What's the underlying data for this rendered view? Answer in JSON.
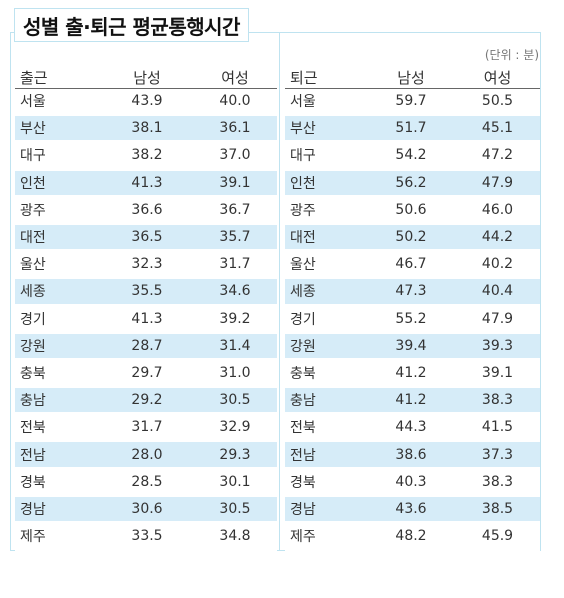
{
  "title": "성별 출·퇴근 평균통행시간",
  "unit": "(단위 : 분)",
  "commute_to_work": {
    "headers": [
      "출근",
      "남성",
      "여성"
    ],
    "rows": [
      [
        "서울",
        "43.9",
        "40.0"
      ],
      [
        "부산",
        "38.1",
        "36.1"
      ],
      [
        "대구",
        "38.2",
        "37.0"
      ],
      [
        "인천",
        "41.3",
        "39.1"
      ],
      [
        "광주",
        "36.6",
        "36.7"
      ],
      [
        "대전",
        "36.5",
        "35.7"
      ],
      [
        "울산",
        "32.3",
        "31.7"
      ],
      [
        "세종",
        "35.5",
        "34.6"
      ],
      [
        "경기",
        "41.3",
        "39.2"
      ],
      [
        "강원",
        "28.7",
        "31.4"
      ],
      [
        "충북",
        "29.7",
        "31.0"
      ],
      [
        "충남",
        "29.2",
        "30.5"
      ],
      [
        "전북",
        "31.7",
        "32.9"
      ],
      [
        "전남",
        "28.0",
        "29.3"
      ],
      [
        "경북",
        "28.5",
        "30.1"
      ],
      [
        "경남",
        "30.6",
        "30.5"
      ],
      [
        "제주",
        "33.5",
        "34.8"
      ]
    ]
  },
  "commute_from_work": {
    "headers": [
      "퇴근",
      "남성",
      "여성"
    ],
    "rows": [
      [
        "서울",
        "59.7",
        "50.5"
      ],
      [
        "부산",
        "51.7",
        "45.1"
      ],
      [
        "대구",
        "54.2",
        "47.2"
      ],
      [
        "인천",
        "56.2",
        "47.9"
      ],
      [
        "광주",
        "50.6",
        "46.0"
      ],
      [
        "대전",
        "50.2",
        "44.2"
      ],
      [
        "울산",
        "46.7",
        "40.2"
      ],
      [
        "세종",
        "47.3",
        "40.4"
      ],
      [
        "경기",
        "55.2",
        "47.9"
      ],
      [
        "강원",
        "39.4",
        "39.3"
      ],
      [
        "충북",
        "41.2",
        "39.1"
      ],
      [
        "충남",
        "41.2",
        "38.3"
      ],
      [
        "전북",
        "44.3",
        "41.5"
      ],
      [
        "전남",
        "38.6",
        "37.3"
      ],
      [
        "경북",
        "40.3",
        "38.3"
      ],
      [
        "경남",
        "43.6",
        "38.5"
      ],
      [
        "제주",
        "48.2",
        "45.9"
      ]
    ]
  },
  "colors": {
    "stripe": "#d6ecf8",
    "border": "#bfe3f0",
    "header_rule": "#666666"
  }
}
